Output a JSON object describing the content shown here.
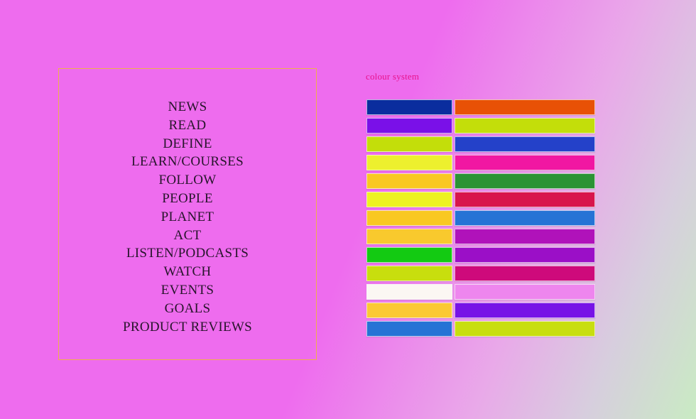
{
  "background": {
    "gradient_stops": [
      "#ee6cee",
      "#e9a9e9",
      "#d7cede",
      "#c9ebc3"
    ]
  },
  "menu": {
    "box_border_color": "#eeb04c",
    "text_color": "#27152b",
    "items": [
      "NEWS",
      "READ",
      "DEFINE",
      "LEARN/COURSES",
      "FOLLOW",
      "PEOPLE",
      "PLANET",
      "ACT",
      "LISTEN/PODCASTS",
      "WATCH",
      "EVENTS",
      "GOALS",
      "PRODUCT REVIEWS"
    ]
  },
  "colour_system": {
    "label": "colour system",
    "label_color": "#e8128e",
    "rows": [
      {
        "left": "#0a2d9e",
        "right": "#e85106"
      },
      {
        "left": "#7a10e8",
        "right": "#c3de0a"
      },
      {
        "left": "#c3de0a",
        "right": "#2441c9"
      },
      {
        "left": "#edf02e",
        "right": "#f117a2"
      },
      {
        "left": "#f9c822",
        "right": "#2b9334"
      },
      {
        "left": "#edf222",
        "right": "#d8154c"
      },
      {
        "left": "#f9c822",
        "right": "#2673d5"
      },
      {
        "left": "#f9c92d",
        "right": "#b012ba"
      },
      {
        "left": "#13ca12",
        "right": "#9b0fc7"
      },
      {
        "left": "#c8de0e",
        "right": "#ce0a7b"
      },
      {
        "left": "#fbf7f3",
        "right": "#ee86ee"
      },
      {
        "left": "#fbc934",
        "right": "#7713e6"
      },
      {
        "left": "#2673d5",
        "right": "#c8de10"
      }
    ]
  }
}
